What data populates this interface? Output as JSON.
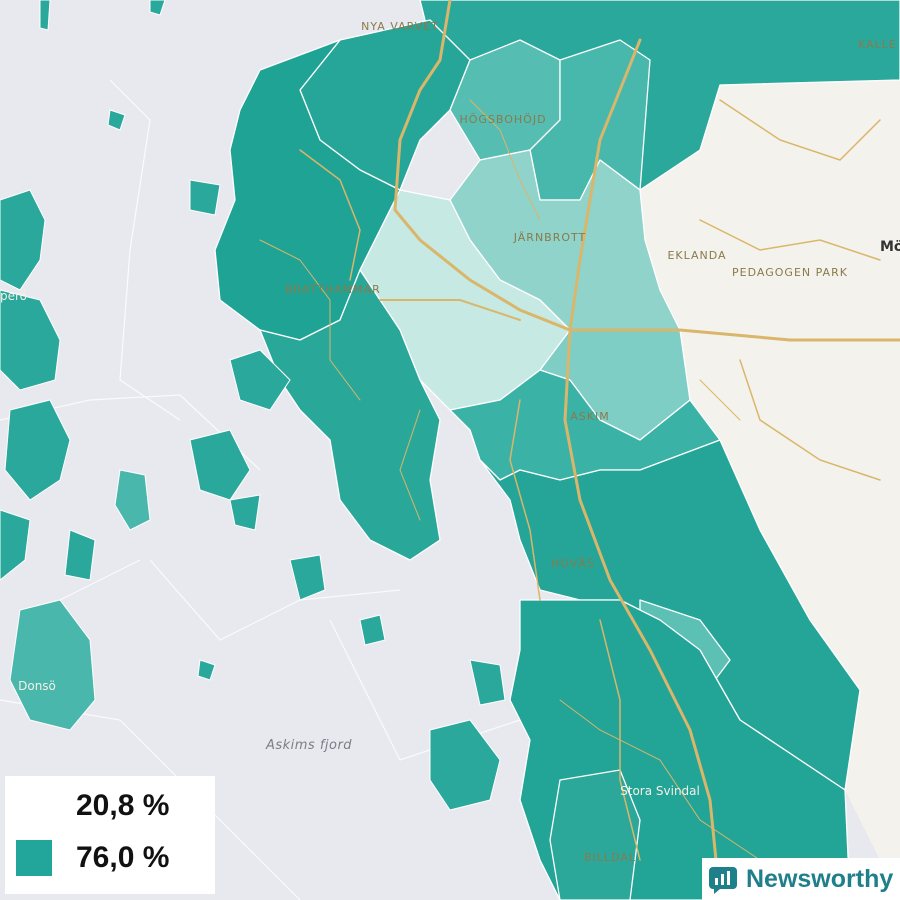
{
  "map": {
    "places": {
      "nya_varvet": "NYA VARVET",
      "hogsbohojd": "HÖGSBOHÖJD",
      "jarnbrott": "JÄRNBROTT",
      "eklanda": "EKLANDA",
      "pedagogen": "PEDAGOGEN PARK",
      "bratthammar": "BRATTHAMMAR",
      "askim": "ASKIM",
      "hovas": "HOVÅS",
      "stora_svindal": "Stora Svindal",
      "billdal": "BILLDAL",
      "donso": "Donsö",
      "styrso_fragment": "perö",
      "kallebo_fragment": "KALLE",
      "molndal_fragment": "Mö",
      "fjord": "Askims fjord"
    }
  },
  "legend": {
    "min_label": "20,8 %",
    "max_label": "76,0 %",
    "min_color": "#ffffff",
    "max_color": "#22a69c"
  },
  "brand": {
    "name": "Newsworthy",
    "color": "#1f7f8a"
  },
  "colors": {
    "water": "#e8e9ee",
    "land_outside": "#f4f2ec",
    "road": "#d9b66a",
    "teal_dark": "#1fa395",
    "teal_mid": "#3bb2a6",
    "teal_light": "#7fcec6",
    "teal_pale": "#b8e3dd"
  }
}
